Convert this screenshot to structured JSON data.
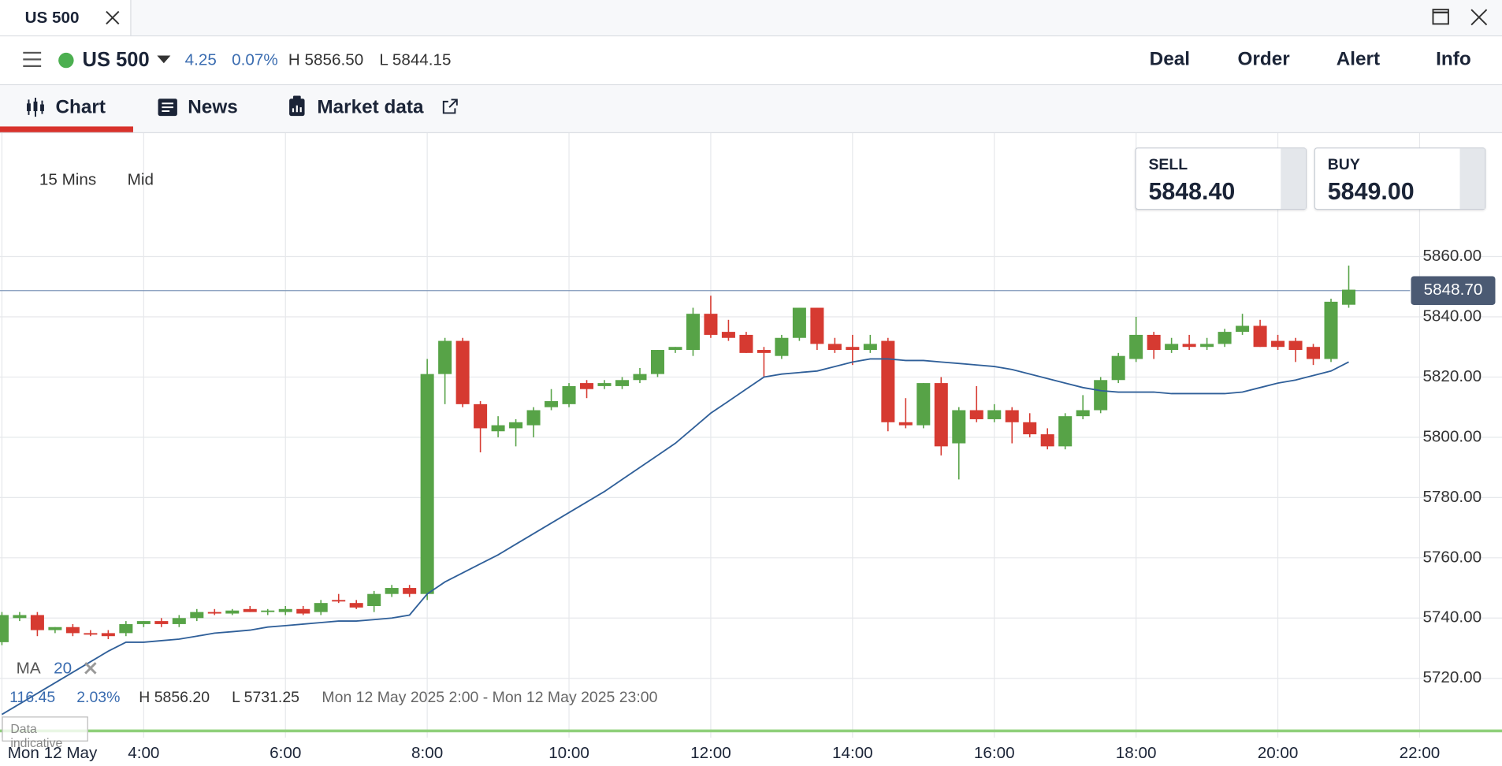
{
  "window": {
    "tab_title": "US 500"
  },
  "toolbar": {
    "symbol": "US 500",
    "change": "4.25",
    "change_pct": "0.07%",
    "high": "H 5856.50",
    "low": "L 5844.15",
    "menu": [
      "Deal",
      "Order",
      "Alert",
      "Info"
    ]
  },
  "tabs": [
    "Chart",
    "News",
    "Market data"
  ],
  "chart_controls": {
    "interval": "15 Mins",
    "price_type": "Mid"
  },
  "quotes": {
    "sell_label": "SELL",
    "sell": "5848.40",
    "buy_label": "BUY",
    "buy": "5849.00"
  },
  "stats": {
    "change": "116.45",
    "change_pct": "2.03%",
    "high": "H 5856.20",
    "low": "L 5731.25",
    "range": "Mon 12 May 2025 2:00 - Mon 12 May 2025 23:00"
  },
  "notice": "Data indicative",
  "chart_data": {
    "type": "candlestick",
    "x": [
      2,
      2.25,
      2.5,
      2.75,
      3,
      3.25,
      3.5,
      3.75,
      4,
      4.25,
      4.5,
      4.75,
      5,
      5.25,
      5.5,
      5.75,
      6,
      6.25,
      6.5,
      6.75,
      7,
      7.25,
      7.5,
      7.75,
      8,
      8.25,
      8.5,
      8.75,
      9,
      9.25,
      9.5,
      9.75,
      10,
      10.25,
      10.5,
      10.75,
      11,
      11.25,
      11.5,
      11.75,
      12,
      12.25,
      12.5,
      12.75,
      13,
      13.25,
      13.5,
      13.75,
      14,
      14.25,
      14.5,
      14.75,
      15,
      15.25,
      15.5,
      15.75,
      16,
      16.25,
      16.5,
      16.75,
      17,
      17.25,
      17.5,
      17.75,
      18,
      18.25,
      18.5,
      18.75,
      19,
      19.25,
      19.5,
      19.75,
      20,
      20.25,
      20.5,
      20.75,
      21
    ],
    "open": [
      5732,
      5740,
      5741,
      5736,
      5737,
      5735,
      5735,
      5735,
      5738,
      5739,
      5738,
      5740,
      5742,
      5741.5,
      5743,
      5742,
      5742,
      5743,
      5742,
      5746,
      5745,
      5744,
      5748,
      5750,
      5748,
      5821,
      5832,
      5811,
      5802,
      5803,
      5804,
      5810,
      5811,
      5818,
      5817,
      5817,
      5819,
      5821,
      5829,
      5829,
      5841,
      5835,
      5834,
      5829,
      5827,
      5833,
      5843,
      5831,
      5830,
      5829,
      5832,
      5805,
      5804,
      5818,
      5798,
      5809,
      5806,
      5809,
      5805,
      5801,
      5797,
      5807,
      5809,
      5819,
      5826,
      5834,
      5829,
      5831,
      5830,
      5831,
      5835,
      5837,
      5832,
      5832,
      5830,
      5826,
      5844
    ],
    "high": [
      5742,
      5742,
      5742,
      5737,
      5738,
      5736,
      5736,
      5739,
      5739,
      5740,
      5741,
      5743,
      5743,
      5743,
      5744,
      5743,
      5744,
      5744,
      5746,
      5748,
      5746,
      5749,
      5751,
      5751,
      5826,
      5833,
      5833,
      5812,
      5807,
      5806,
      5810,
      5816,
      5818,
      5819,
      5819,
      5820,
      5823,
      5829,
      5830,
      5843,
      5847,
      5839,
      5835,
      5830,
      5834,
      5843,
      5843,
      5833,
      5834,
      5834,
      5833,
      5813,
      5818,
      5820,
      5810,
      5817,
      5811,
      5810,
      5808,
      5803,
      5808,
      5814,
      5820,
      5828,
      5840,
      5835,
      5833,
      5834,
      5833,
      5836,
      5841,
      5839,
      5834,
      5833,
      5831,
      5846,
      5857
    ],
    "low": [
      5731,
      5739,
      5734,
      5735,
      5734,
      5734,
      5733,
      5734,
      5737,
      5737,
      5737,
      5739,
      5741,
      5741,
      5742,
      5741,
      5741,
      5741,
      5741,
      5745,
      5743,
      5742,
      5747,
      5747,
      5746,
      5811,
      5810,
      5795,
      5800,
      5797,
      5800,
      5809,
      5810,
      5813,
      5816,
      5816,
      5818,
      5820,
      5828,
      5827,
      5833,
      5832,
      5828,
      5820,
      5826,
      5832,
      5829,
      5828,
      5824,
      5828,
      5802,
      5803,
      5803,
      5794,
      5786,
      5805,
      5805,
      5798,
      5800,
      5796,
      5796,
      5806,
      5808,
      5818,
      5825,
      5826,
      5828,
      5829,
      5829,
      5830,
      5834,
      5830,
      5829,
      5825,
      5824,
      5825,
      5843
    ],
    "close": [
      5741,
      5741,
      5736,
      5737,
      5735,
      5734.5,
      5734,
      5738,
      5739,
      5738,
      5740,
      5742,
      5741.5,
      5742.5,
      5742,
      5742.5,
      5743,
      5741.5,
      5745,
      5745.5,
      5743.5,
      5748,
      5750,
      5748,
      5821,
      5832,
      5811,
      5803,
      5804,
      5805,
      5809,
      5812,
      5817,
      5816,
      5818,
      5819,
      5821,
      5829,
      5830,
      5841,
      5834,
      5833,
      5828,
      5828,
      5833,
      5843,
      5831,
      5829,
      5829,
      5831,
      5805,
      5804,
      5818,
      5797,
      5809,
      5806,
      5809,
      5805,
      5801,
      5797,
      5807,
      5809,
      5819,
      5827,
      5834,
      5829,
      5831,
      5830,
      5831,
      5835,
      5837,
      5830,
      5830,
      5829,
      5826,
      5845,
      5849
    ],
    "up_color": "#57a347",
    "down_color": "#d63a31",
    "indicator": {
      "name": "MA",
      "period": 20,
      "color": "#2f5f99",
      "values": [
        5708,
        5711.5,
        5715,
        5718.5,
        5722,
        5725.5,
        5729,
        5732,
        5732,
        5732.5,
        5733,
        5734,
        5735,
        5735.5,
        5736,
        5737,
        5737.5,
        5738,
        5738.5,
        5739,
        5739,
        5739.5,
        5740,
        5741,
        5748,
        5752,
        5755,
        5758,
        5761,
        5764.5,
        5768,
        5771.5,
        5775,
        5778.5,
        5782,
        5786,
        5790,
        5794,
        5798,
        5803,
        5808,
        5812,
        5816,
        5820,
        5821,
        5821.5,
        5822,
        5823.5,
        5825,
        5826,
        5826,
        5825.5,
        5825.5,
        5825,
        5824.5,
        5824,
        5823.5,
        5822.5,
        5821,
        5819.5,
        5818,
        5816.5,
        5815.5,
        5815,
        5815,
        5815,
        5814.5,
        5814.5,
        5814.5,
        5814.5,
        5815,
        5816.5,
        5818,
        5819,
        5820.5,
        5822,
        5825
      ]
    },
    "last_price": {
      "value": 5848.7,
      "label": "5848.70"
    },
    "xlim": [
      2,
      23
    ],
    "xticks": [
      {
        "value": 2,
        "label": "Mon 12 May"
      },
      {
        "value": 4,
        "label": "4:00"
      },
      {
        "value": 6,
        "label": "6:00"
      },
      {
        "value": 8,
        "label": "8:00"
      },
      {
        "value": 10,
        "label": "10:00"
      },
      {
        "value": 12,
        "label": "12:00"
      },
      {
        "value": 14,
        "label": "14:00"
      },
      {
        "value": 16,
        "label": "16:00"
      },
      {
        "value": 18,
        "label": "18:00"
      },
      {
        "value": 20,
        "label": "20:00"
      },
      {
        "value": 22,
        "label": "22:00"
      }
    ],
    "ylim": [
      5700,
      5900
    ],
    "yticks": [
      {
        "value": 5720,
        "label": "5720.00"
      },
      {
        "value": 5740,
        "label": "5740.00"
      },
      {
        "value": 5760,
        "label": "5760.00"
      },
      {
        "value": 5780,
        "label": "5780.00"
      },
      {
        "value": 5800,
        "label": "5800.00"
      },
      {
        "value": 5820,
        "label": "5820.00"
      },
      {
        "value": 5840,
        "label": "5840.00"
      },
      {
        "value": 5860,
        "label": "5860.00"
      }
    ],
    "grid": true
  }
}
